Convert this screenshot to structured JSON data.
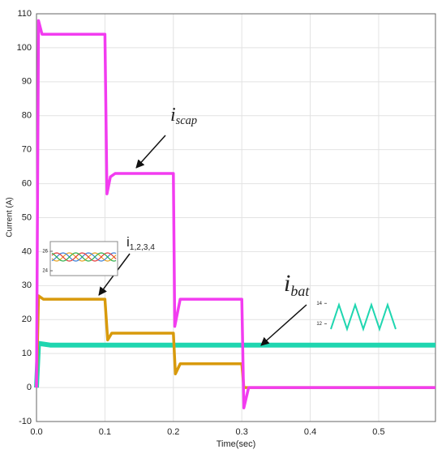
{
  "chart_data": {
    "type": "line",
    "x_label": "Time(sec)",
    "y_label": "Current (A)",
    "xlim": [
      0,
      0.583
    ],
    "ylim": [
      -10,
      110
    ],
    "xticks": [
      {
        "value": 0,
        "label": "0.0"
      },
      {
        "value": 0.1,
        "label": "0.1"
      },
      {
        "value": 0.2,
        "label": "0.2"
      },
      {
        "value": 0.3,
        "label": "0.3"
      },
      {
        "value": 0.4,
        "label": "0.4"
      },
      {
        "value": 0.5,
        "label": "0.5"
      }
    ],
    "yticks": [
      -10,
      0,
      10,
      20,
      30,
      40,
      50,
      60,
      70,
      80,
      90,
      100,
      110
    ],
    "grid": true,
    "series": [
      {
        "color": "#1fd6b0",
        "x": [
          0,
          0.003,
          0.02,
          0.583
        ],
        "values": [
          0,
          13,
          12.5,
          12.5
        ]
      },
      {
        "color": "#d89a0c",
        "x": [
          0,
          0.003,
          0.01,
          0.1,
          0.104,
          0.11,
          0.2,
          0.203,
          0.21,
          0.3,
          0.303,
          0.31,
          0.583
        ],
        "values": [
          0,
          27,
          26,
          26,
          14,
          16,
          16,
          4,
          7,
          7,
          0,
          0,
          0
        ]
      },
      {
        "color": "#f23cf0",
        "x": [
          0,
          0.003,
          0.008,
          0.1,
          0.103,
          0.108,
          0.115,
          0.2,
          0.202,
          0.21,
          0.3,
          0.303,
          0.31,
          0.583
        ],
        "values": [
          0,
          108,
          104,
          104,
          57,
          62,
          63,
          63,
          18,
          26,
          26,
          -6,
          0,
          0
        ]
      }
    ],
    "annotations": [
      {
        "text": "i",
        "subscript": "scap"
      },
      {
        "text": "i",
        "subscript": "1,2,3,4"
      },
      {
        "text": "i",
        "subscript": "bat"
      }
    ],
    "insets": [
      {
        "ylim": [
          23.5,
          27
        ],
        "yticks": [
          24,
          26
        ]
      },
      {
        "ylim": [
          11,
          14.5
        ],
        "yticks": [
          12,
          14
        ]
      }
    ]
  }
}
